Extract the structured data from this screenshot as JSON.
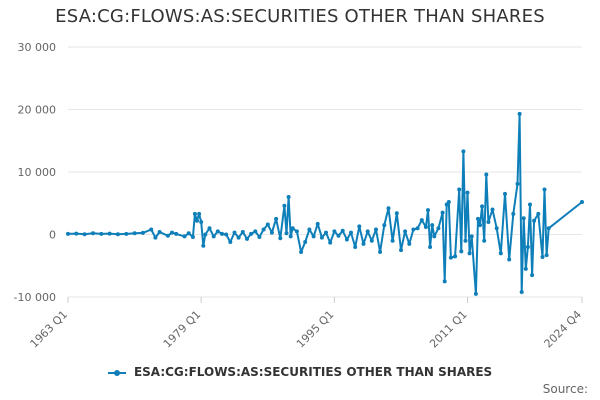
{
  "title": "ESA:CG:FLOWS:AS:SECURITIES OTHER THAN SHARES",
  "credits": "Source:",
  "colors": {
    "series": "#0f7fb9",
    "grid": "#e6e6e6",
    "text": "#666666"
  },
  "chart_data": {
    "type": "line",
    "title": "ESA:CG:FLOWS:AS:SECURITIES OTHER THAN SHARES",
    "xlabel": "",
    "ylabel": "",
    "x_range": [
      "1963 Q1",
      "2024 Q4"
    ],
    "x_tick_labels": [
      "1963 Q1",
      "1979 Q1",
      "1995 Q1",
      "2011 Q1",
      "2024 Q4"
    ],
    "y_ticks": [
      -10000,
      0,
      10000,
      20000,
      30000
    ],
    "y_tick_labels": [
      "-10 000",
      "0",
      "10 000",
      "20 000",
      "30 000"
    ],
    "ylim": [
      -10000,
      30000
    ],
    "grid": true,
    "legend": "bottom",
    "series": [
      {
        "name": "ESA:CG:FLOWS:AS:SECURITIES OTHER THAN SHARES",
        "points": [
          [
            "1963 Q1",
            100
          ],
          [
            "1964 Q1",
            150
          ],
          [
            "1965 Q1",
            50
          ],
          [
            "1966 Q1",
            200
          ],
          [
            "1967 Q1",
            100
          ],
          [
            "1968 Q1",
            150
          ],
          [
            "1969 Q1",
            50
          ],
          [
            "1970 Q1",
            100
          ],
          [
            "1971 Q1",
            200
          ],
          [
            "1972 Q1",
            250
          ],
          [
            "1973 Q1",
            800
          ],
          [
            "1973 Q3",
            -500
          ],
          [
            "1974 Q1",
            400
          ],
          [
            "1975 Q1",
            -200
          ],
          [
            "1975 Q3",
            300
          ],
          [
            "1976 Q1",
            100
          ],
          [
            "1977 Q1",
            -300
          ],
          [
            "1977 Q3",
            200
          ],
          [
            "1978 Q1",
            -400
          ],
          [
            "1978 Q2",
            3300
          ],
          [
            "1978 Q3",
            2200
          ],
          [
            "1978 Q4",
            3300
          ],
          [
            "1979 Q1",
            2000
          ],
          [
            "1979 Q2",
            -1800
          ],
          [
            "1979 Q3",
            0
          ],
          [
            "1980 Q1",
            1000
          ],
          [
            "1980 Q3",
            -300
          ],
          [
            "1981 Q1",
            500
          ],
          [
            "1981 Q3",
            100
          ],
          [
            "1982 Q1",
            0
          ],
          [
            "1982 Q3",
            -1200
          ],
          [
            "1983 Q1",
            300
          ],
          [
            "1983 Q3",
            -500
          ],
          [
            "1984 Q1",
            400
          ],
          [
            "1984 Q3",
            -700
          ],
          [
            "1985 Q1",
            100
          ],
          [
            "1985 Q3",
            500
          ],
          [
            "1986 Q1",
            -400
          ],
          [
            "1986 Q3",
            800
          ],
          [
            "1987 Q1",
            1600
          ],
          [
            "1987 Q3",
            300
          ],
          [
            "1988 Q1",
            2500
          ],
          [
            "1988 Q3",
            -600
          ],
          [
            "1989 Q1",
            4600
          ],
          [
            "1989 Q2",
            200
          ],
          [
            "1989 Q3",
            6000
          ],
          [
            "1989 Q4",
            -300
          ],
          [
            "1990 Q1",
            1000
          ],
          [
            "1990 Q3",
            500
          ],
          [
            "1991 Q1",
            -2800
          ],
          [
            "1991 Q3",
            -1200
          ],
          [
            "1992 Q1",
            800
          ],
          [
            "1992 Q3",
            -300
          ],
          [
            "1993 Q1",
            1700
          ],
          [
            "1993 Q3",
            -500
          ],
          [
            "1994 Q1",
            300
          ],
          [
            "1994 Q3",
            -1300
          ],
          [
            "1995 Q1",
            500
          ],
          [
            "1995 Q3",
            -200
          ],
          [
            "1996 Q1",
            600
          ],
          [
            "1996 Q3",
            -800
          ],
          [
            "1997 Q1",
            300
          ],
          [
            "1997 Q3",
            -2000
          ],
          [
            "1998 Q1",
            1300
          ],
          [
            "1998 Q3",
            -1500
          ],
          [
            "1999 Q1",
            500
          ],
          [
            "1999 Q3",
            -1000
          ],
          [
            "2000 Q1",
            800
          ],
          [
            "2000 Q3",
            -2800
          ],
          [
            "2001 Q1",
            1500
          ],
          [
            "2001 Q3",
            4200
          ],
          [
            "2002 Q1",
            -1000
          ],
          [
            "2002 Q3",
            3400
          ],
          [
            "2003 Q1",
            -2500
          ],
          [
            "2003 Q3",
            500
          ],
          [
            "2004 Q1",
            -1500
          ],
          [
            "2004 Q3",
            800
          ],
          [
            "2005 Q1",
            1000
          ],
          [
            "2005 Q3",
            2300
          ],
          [
            "2006 Q1",
            1200
          ],
          [
            "2006 Q2",
            3900
          ],
          [
            "2006 Q3",
            -2000
          ],
          [
            "2006 Q4",
            1500
          ],
          [
            "2007 Q1",
            -300
          ],
          [
            "2007 Q3",
            1000
          ],
          [
            "2008 Q1",
            3500
          ],
          [
            "2008 Q2",
            -7500
          ],
          [
            "2008 Q3",
            4800
          ],
          [
            "2008 Q4",
            5200
          ],
          [
            "2009 Q1",
            -3700
          ],
          [
            "2009 Q3",
            -3500
          ],
          [
            "2010 Q1",
            7200
          ],
          [
            "2010 Q2",
            -2700
          ],
          [
            "2010 Q3",
            13300
          ],
          [
            "2010 Q4",
            -1000
          ],
          [
            "2011 Q1",
            6700
          ],
          [
            "2011 Q2",
            -3000
          ],
          [
            "2011 Q3",
            -300
          ],
          [
            "2012 Q1",
            -9500
          ],
          [
            "2012 Q2",
            2500
          ],
          [
            "2012 Q3",
            1500
          ],
          [
            "2012 Q4",
            4500
          ],
          [
            "2013 Q1",
            -1000
          ],
          [
            "2013 Q2",
            9600
          ],
          [
            "2013 Q3",
            2000
          ],
          [
            "2014 Q1",
            4000
          ],
          [
            "2014 Q3",
            1000
          ],
          [
            "2015 Q1",
            -3000
          ],
          [
            "2015 Q3",
            6500
          ],
          [
            "2016 Q1",
            -4000
          ],
          [
            "2016 Q3",
            3300
          ],
          [
            "2017 Q1",
            8100
          ],
          [
            "2017 Q2",
            19300
          ],
          [
            "2017 Q3",
            -9200
          ],
          [
            "2017 Q4",
            2600
          ],
          [
            "2018 Q1",
            -5500
          ],
          [
            "2018 Q2",
            -2000
          ],
          [
            "2018 Q3",
            4800
          ],
          [
            "2018 Q4",
            -6500
          ],
          [
            "2019 Q1",
            2200
          ],
          [
            "2019 Q3",
            3300
          ],
          [
            "2020 Q1",
            -3600
          ],
          [
            "2020 Q2",
            7200
          ],
          [
            "2020 Q3",
            -3300
          ],
          [
            "2020 Q4",
            1000
          ],
          [
            "2024 Q4",
            5200
          ]
        ]
      }
    ]
  }
}
